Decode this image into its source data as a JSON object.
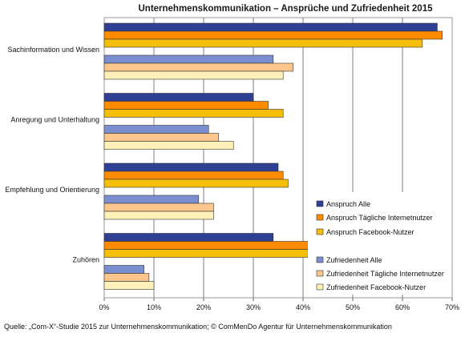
{
  "chart_data": {
    "type": "bar",
    "orientation": "horizontal",
    "title": "Unternehmenskommunikation  – Ansprüche und Zufriedenheit 2015",
    "categories": [
      "Sachinformation und Wissen",
      "Anregung und Unterhaltung",
      "Empfehlung und Orientierung",
      "Zuhören"
    ],
    "series": [
      {
        "name": "Anspruch Alle",
        "color": "#2f3f93",
        "values": [
          67,
          30,
          35,
          34
        ]
      },
      {
        "name": "Anspruch Tägliche Internetnutzer",
        "color": "#ff8c00",
        "values": [
          68,
          33,
          36,
          41
        ]
      },
      {
        "name": "Anspruch Facebook-Nutzer",
        "color": "#f5be0a",
        "values": [
          64,
          36,
          37,
          41
        ]
      },
      {
        "name": "Zufriedenheit Alle",
        "color": "#7b8fd0",
        "values": [
          34,
          21,
          19,
          8
        ]
      },
      {
        "name": "Zufriedenheit Tägliche Internetnutzer",
        "color": "#fbc68b",
        "values": [
          38,
          23,
          22,
          9
        ]
      },
      {
        "name": "Zufriedenheit Facebook-Nutzer",
        "color": "#fdf0b8",
        "values": [
          36,
          26,
          22,
          10
        ]
      }
    ],
    "xlim": [
      0,
      70
    ],
    "xticks": [
      "0%",
      "10%",
      "20%",
      "30%",
      "40%",
      "50%",
      "60%",
      "70%"
    ],
    "xlabel": "",
    "ylabel": "",
    "grid": "vertical",
    "legend_position": "right"
  },
  "source": "Quelle: „Com-X“-Studie 2015 zur Unternehmenskommunikation; © ComMenDo Agentur für Unternehmenskommunikation"
}
